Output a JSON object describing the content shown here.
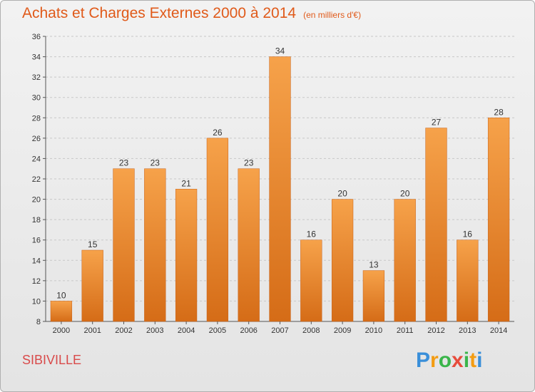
{
  "title": "Achats et Charges Externes 2000 à 2014",
  "subtitle": "(en milliers d'€)",
  "commune": "SIBIVILLE",
  "logo": {
    "letters": [
      "P",
      "r",
      "o",
      "x",
      "i",
      "t",
      "i"
    ],
    "colors": [
      "#3a8fd9",
      "#f39c12",
      "#3ab54a",
      "#e74c3c",
      "#3ab54a",
      "#f39c12",
      "#3a8fd9"
    ]
  },
  "colors": {
    "bar_top": "#f6a24a",
    "bar_bottom": "#d56c17",
    "bar_stroke": "#c8621a",
    "grid": "#c8c8c8"
  },
  "chart_data": {
    "type": "bar",
    "categories": [
      "2000",
      "2001",
      "2002",
      "2003",
      "2004",
      "2005",
      "2006",
      "2007",
      "2008",
      "2009",
      "2010",
      "2011",
      "2012",
      "2013",
      "2014"
    ],
    "values": [
      10,
      15,
      23,
      23,
      21,
      26,
      23,
      34,
      16,
      20,
      13,
      20,
      27,
      16,
      28
    ],
    "ylim": [
      8,
      36
    ],
    "yticks": [
      8,
      10,
      12,
      14,
      16,
      18,
      20,
      22,
      24,
      26,
      28,
      30,
      32,
      34,
      36
    ],
    "grid": true
  }
}
